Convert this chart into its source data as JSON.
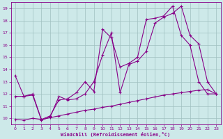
{
  "bg_color": "#cde9e9",
  "line_color": "#880088",
  "grid_color": "#a0c0c0",
  "xlabel": "Windchill (Refroidissement éolien,°C)",
  "xlim": [
    -0.5,
    23.5
  ],
  "ylim": [
    9.5,
    19.5
  ],
  "xticks": [
    0,
    1,
    2,
    3,
    4,
    5,
    6,
    7,
    8,
    9,
    10,
    11,
    12,
    13,
    14,
    15,
    16,
    17,
    18,
    19,
    20,
    21,
    22,
    23
  ],
  "yticks": [
    10,
    11,
    12,
    13,
    14,
    15,
    16,
    17,
    18,
    19
  ],
  "line1_x": [
    0,
    1,
    2,
    3,
    4,
    5,
    6,
    7,
    8,
    9,
    10,
    11,
    12,
    13,
    14,
    15,
    16,
    17,
    18,
    19,
    20,
    21,
    22,
    23
  ],
  "line1_y": [
    13.5,
    11.8,
    12.0,
    9.9,
    10.2,
    11.5,
    11.6,
    12.1,
    13.0,
    12.2,
    17.3,
    16.6,
    14.2,
    14.5,
    15.0,
    18.1,
    18.2,
    18.4,
    19.2,
    16.8,
    16.0,
    13.0,
    12.0,
    12.0
  ],
  "line2_x": [
    0,
    1,
    2,
    3,
    4,
    5,
    6,
    7,
    8,
    9,
    10,
    11,
    12,
    13,
    14,
    15,
    16,
    17,
    18,
    19,
    20,
    21,
    22,
    23
  ],
  "line2_y": [
    11.8,
    11.8,
    11.9,
    9.85,
    10.1,
    11.8,
    11.5,
    11.6,
    12.0,
    13.0,
    15.2,
    17.0,
    12.1,
    14.4,
    14.7,
    15.5,
    17.8,
    18.3,
    18.6,
    19.2,
    16.8,
    16.1,
    13.0,
    12.0
  ],
  "line3_x": [
    0,
    1,
    2,
    3,
    4,
    5,
    6,
    7,
    8,
    9,
    10,
    11,
    12,
    13,
    14,
    15,
    16,
    17,
    18,
    19,
    20,
    21,
    22,
    23
  ],
  "line3_y": [
    9.9,
    9.85,
    10.0,
    9.9,
    10.05,
    10.2,
    10.35,
    10.5,
    10.65,
    10.75,
    10.9,
    11.0,
    11.15,
    11.3,
    11.45,
    11.6,
    11.75,
    11.9,
    12.0,
    12.1,
    12.2,
    12.3,
    12.35,
    12.0
  ]
}
